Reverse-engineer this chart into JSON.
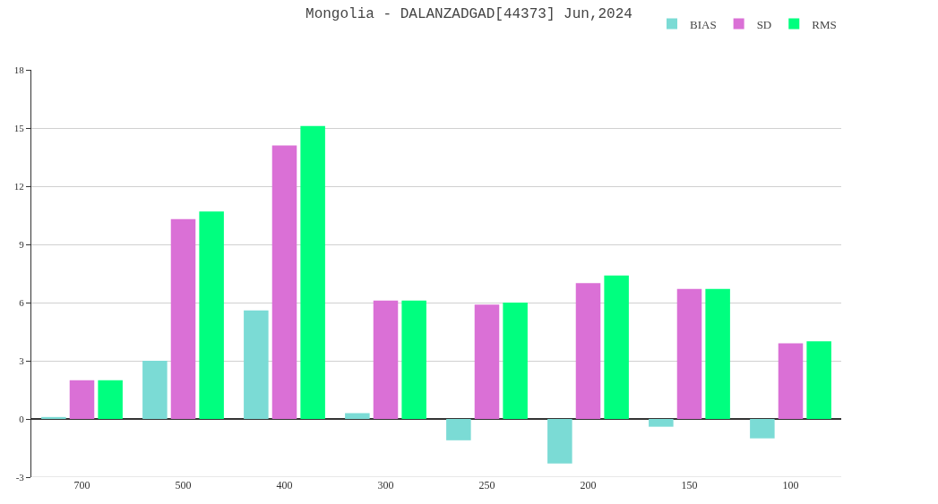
{
  "chart_data": {
    "type": "bar",
    "title": "Mongolia - DALANZADGAD[44373] Jun,2024",
    "categories": [
      "700",
      "500",
      "400",
      "300",
      "250",
      "200",
      "150",
      "100"
    ],
    "series": [
      {
        "name": "BIAS",
        "color": "#7bdbd5",
        "values": [
          0.1,
          3.0,
          5.6,
          0.3,
          -1.1,
          -2.3,
          -0.4,
          -1.0
        ]
      },
      {
        "name": "SD",
        "color": "#da70d6",
        "values": [
          2.0,
          10.3,
          14.1,
          6.1,
          5.9,
          7.0,
          6.7,
          3.9
        ]
      },
      {
        "name": "RMS",
        "color": "#00ff7f",
        "values": [
          2.0,
          10.7,
          15.1,
          6.1,
          6.0,
          7.4,
          6.7,
          4.0
        ]
      }
    ],
    "ylim": [
      -3,
      18
    ],
    "yticks": [
      -3,
      0,
      3,
      6,
      9,
      12,
      15,
      18
    ],
    "grid": "y",
    "legend": "top right"
  }
}
